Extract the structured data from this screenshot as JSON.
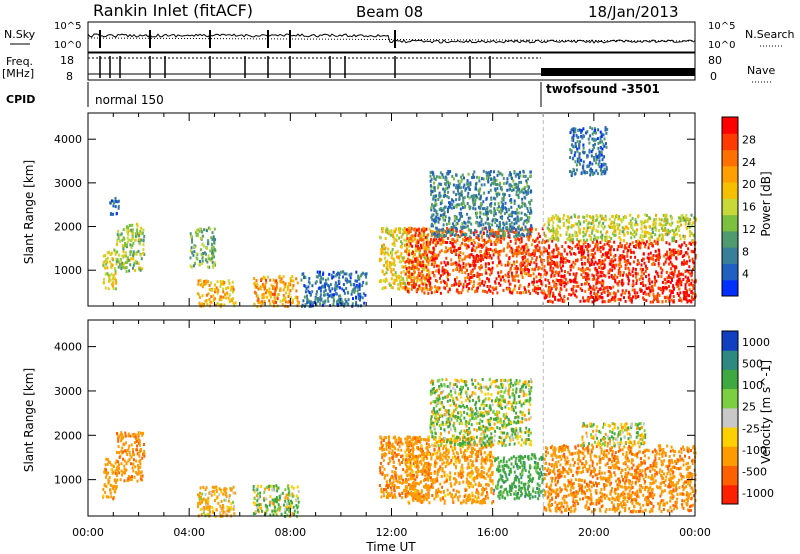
{
  "header": {
    "station": "Rankin Inlet (fitACF)",
    "beam": "Beam 08",
    "date": "18/Jan/2013"
  },
  "top_panels": {
    "nsky_label": "N.Sky",
    "nsky_ticks": [
      "10^5",
      "10^0"
    ],
    "nsearch_label": "N.Search",
    "nsearch_ticks": [
      "10^5",
      "10^0"
    ],
    "freq_label_1": "Freq.",
    "freq_label_2": "[MHz]",
    "freq_ticks": [
      "18",
      "8"
    ],
    "nave_label": "Nave",
    "nave_ticks": [
      "80",
      "0"
    ],
    "cpid_label": "CPID",
    "cpid_modes": [
      {
        "name": "normal 150",
        "start_hour": 0,
        "end_hour": 18
      },
      {
        "name": "twofsound -3501",
        "start_hour": 18,
        "end_hour": 24
      }
    ]
  },
  "chart_data": [
    {
      "type": "heatmap",
      "title": "",
      "xlabel": "",
      "ylabel": "Slant Range [km]",
      "xlim": [
        0,
        24
      ],
      "ylim": [
        180,
        4600
      ],
      "yticks": [
        1000,
        2000,
        3000,
        4000
      ],
      "colorbar_label": "Power [dB]",
      "colorbar_ticks": [
        4,
        8,
        12,
        16,
        20,
        24,
        28
      ],
      "colorbar_range": [
        0,
        32
      ],
      "colorbar_colors": [
        "#0030ff",
        "#2060c0",
        "#3a7f9a",
        "#4f9a6e",
        "#7cc040",
        "#c8d838",
        "#f5c000",
        "#ffa000",
        "#ff7000",
        "#ff3a00",
        "#ff0000"
      ],
      "clusters": [
        {
          "t": [
            0.55,
            1.1
          ],
          "r": [
            600,
            1500
          ],
          "v": 18
        },
        {
          "t": [
            0.8,
            1.2
          ],
          "r": [
            2300,
            2700
          ],
          "v": 6
        },
        {
          "t": [
            1.1,
            2.2
          ],
          "r": [
            1000,
            2100
          ],
          "v": 14
        },
        {
          "t": [
            4.0,
            5.0
          ],
          "r": [
            1100,
            2000
          ],
          "v": 12
        },
        {
          "t": [
            4.3,
            5.8
          ],
          "r": [
            200,
            800
          ],
          "v": 20
        },
        {
          "t": [
            6.5,
            8.3
          ],
          "r": [
            200,
            900
          ],
          "v": 22
        },
        {
          "t": [
            8.4,
            11.0
          ],
          "r": [
            200,
            1000
          ],
          "v": 6
        },
        {
          "t": [
            11.5,
            13.5
          ],
          "r": [
            600,
            2000
          ],
          "v": 18
        },
        {
          "t": [
            12.5,
            18.0
          ],
          "r": [
            500,
            2000
          ],
          "v": 27
        },
        {
          "t": [
            13.5,
            17.5
          ],
          "r": [
            1800,
            3300
          ],
          "v": 8
        },
        {
          "t": [
            18.0,
            24.0
          ],
          "r": [
            300,
            1700
          ],
          "v": 29
        },
        {
          "t": [
            18.0,
            24.0
          ],
          "r": [
            1700,
            2300
          ],
          "v": 16
        },
        {
          "t": [
            19.0,
            20.5
          ],
          "r": [
            3200,
            4300
          ],
          "v": 6
        }
      ]
    },
    {
      "type": "heatmap",
      "title": "",
      "xlabel": "Time UT",
      "ylabel": "Slant Range [km]",
      "xlim": [
        0,
        24
      ],
      "ylim": [
        180,
        4600
      ],
      "yticks": [
        1000,
        2000,
        3000,
        4000
      ],
      "xticks": [
        "00:00",
        "04:00",
        "08:00",
        "12:00",
        "16:00",
        "20:00",
        "00:00"
      ],
      "colorbar_label": "Velocity [m s^-1]",
      "colorbar_ticks": [
        1000,
        500,
        100,
        25,
        -25,
        -100,
        -500,
        -1000
      ],
      "colorbar_colors": [
        "#1040c0",
        "#2e8a80",
        "#40a840",
        "#7cd040",
        "#c8c8c8",
        "#ffd000",
        "#ff9a00",
        "#ff6000",
        "#ff2000"
      ],
      "clusters": [
        {
          "t": [
            0.55,
            1.1
          ],
          "r": [
            600,
            1500
          ],
          "v": -300
        },
        {
          "t": [
            1.1,
            2.2
          ],
          "r": [
            1000,
            2100
          ],
          "v": -400
        },
        {
          "t": [
            4.3,
            5.8
          ],
          "r": [
            200,
            900
          ],
          "v": -150
        },
        {
          "t": [
            6.5,
            8.3
          ],
          "r": [
            200,
            900
          ],
          "v": 50
        },
        {
          "t": [
            11.5,
            13.5
          ],
          "r": [
            600,
            2000
          ],
          "v": -400
        },
        {
          "t": [
            12.5,
            16.0
          ],
          "r": [
            500,
            2000
          ],
          "v": -300
        },
        {
          "t": [
            16.0,
            18.0
          ],
          "r": [
            600,
            1600
          ],
          "v": 300
        },
        {
          "t": [
            13.5,
            17.5
          ],
          "r": [
            1800,
            3300
          ],
          "v": 80
        },
        {
          "t": [
            18.0,
            24.0
          ],
          "r": [
            300,
            1800
          ],
          "v": -400
        },
        {
          "t": [
            19.5,
            22.0
          ],
          "r": [
            1800,
            2300
          ],
          "v": 0
        }
      ]
    }
  ]
}
